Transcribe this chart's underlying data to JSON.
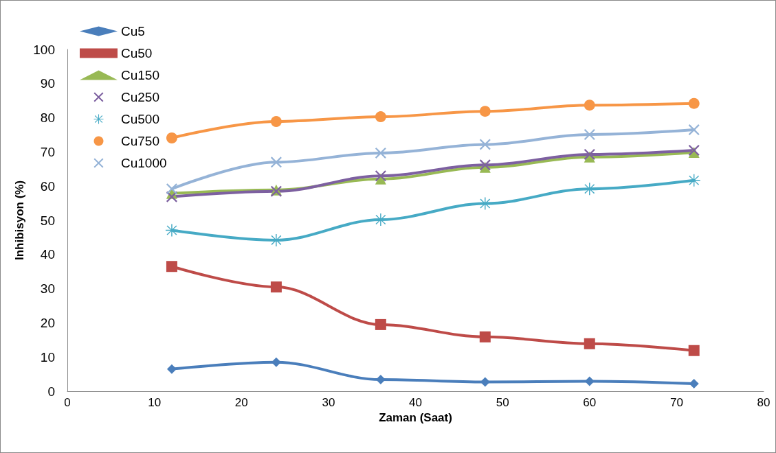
{
  "chart_data": {
    "type": "line",
    "xlabel": "Zaman (Saat)",
    "ylabel": "Inhibisyon (%)",
    "x": [
      12,
      24,
      36,
      48,
      60,
      72
    ],
    "xlim": [
      0,
      80
    ],
    "xticks": [
      0,
      10,
      20,
      30,
      40,
      50,
      60,
      70,
      80
    ],
    "ylim": [
      0,
      100
    ],
    "yticks": [
      0,
      10,
      20,
      30,
      40,
      50,
      60,
      70,
      80,
      90,
      100
    ],
    "grid": false,
    "legend": "top left",
    "line_style": "solid",
    "series": [
      {
        "name": "Cu5",
        "color": "#4a7ebb",
        "marker": "diamond",
        "values": [
          6.5,
          8.5,
          3.4,
          2.7,
          2.9,
          2.2
        ]
      },
      {
        "name": "Cu50",
        "color": "#be4b48",
        "marker": "square",
        "values": [
          36.5,
          30.5,
          19.5,
          15.9,
          13.9,
          11.9
        ]
      },
      {
        "name": "Cu150",
        "color": "#98b954",
        "marker": "triangle",
        "values": [
          57.9,
          58.9,
          62.1,
          65.5,
          68.5,
          69.9
        ]
      },
      {
        "name": "Cu250",
        "color": "#7d60a0",
        "marker": "cross",
        "values": [
          56.9,
          58.5,
          63,
          66.2,
          69.3,
          70.5
        ]
      },
      {
        "name": "Cu500",
        "color": "#46aac5",
        "marker": "star",
        "values": [
          47.1,
          44.2,
          50.2,
          54.9,
          59.2,
          61.7
        ]
      },
      {
        "name": "Cu750",
        "color": "#f79646",
        "marker": "circle",
        "values": [
          74.1,
          78.9,
          80.3,
          81.9,
          83.7,
          84.2
        ]
      },
      {
        "name": "Cu1000",
        "color": "#95b3d7",
        "marker": "cross",
        "values": [
          59.2,
          67,
          69.7,
          72.2,
          75.1,
          76.5
        ]
      }
    ]
  }
}
